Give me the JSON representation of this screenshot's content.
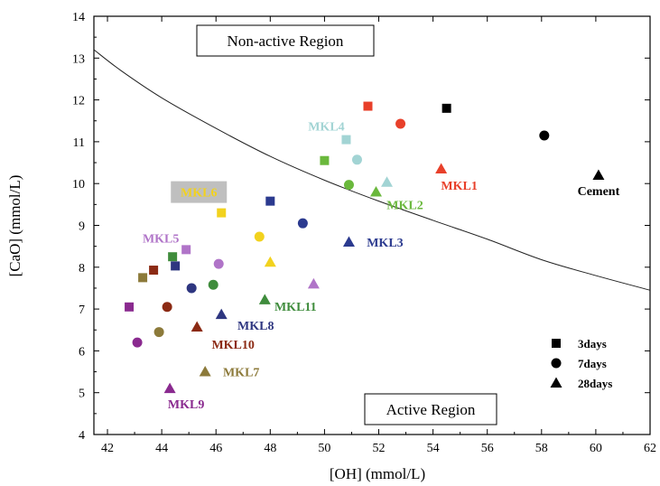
{
  "chart_data": {
    "type": "scatter",
    "xlabel": "[OH] (mmol/L)",
    "ylabel": "[CaO] (mmol/L)",
    "xlim": [
      41.5,
      62
    ],
    "ylim": [
      4,
      14
    ],
    "x_ticks": [
      "42",
      "44",
      "46",
      "48",
      "50",
      "52",
      "54",
      "56",
      "58",
      "60",
      "62"
    ],
    "y_ticks": [
      "4",
      "5",
      "6",
      "7",
      "8",
      "9",
      "10",
      "11",
      "12",
      "13",
      "14"
    ],
    "regions": {
      "upper": "Non-active Region",
      "lower": "Active Region"
    },
    "boundary_curve": [
      [
        41.5,
        13.2
      ],
      [
        42.5,
        12.7
      ],
      [
        44,
        12.05
      ],
      [
        46,
        11.32
      ],
      [
        48,
        10.65
      ],
      [
        50,
        10.08
      ],
      [
        52,
        9.58
      ],
      [
        54,
        9.12
      ],
      [
        56,
        8.67
      ],
      [
        58,
        8.18
      ],
      [
        60,
        7.8
      ],
      [
        62,
        7.45
      ]
    ],
    "legend": {
      "position": "bottom-right",
      "entries": [
        {
          "label": "3days",
          "marker": "square"
        },
        {
          "label": "7days",
          "marker": "circle"
        },
        {
          "label": "28days",
          "marker": "triangle"
        }
      ]
    },
    "series": [
      {
        "name": "Cement",
        "color": "#000000",
        "label_anchor": "right-below",
        "points": {
          "3days": [
            54.5,
            11.8
          ],
          "7days": [
            58.1,
            11.15
          ],
          "28days": [
            60.1,
            10.2
          ]
        }
      },
      {
        "name": "MKL1",
        "color": "#e8402a",
        "label_anchor": "below",
        "points": {
          "3days": [
            51.6,
            11.85
          ],
          "7days": [
            52.8,
            11.43
          ],
          "28days": [
            54.3,
            10.35
          ]
        }
      },
      {
        "name": "MKL2",
        "color": "#6ab83c",
        "label_anchor": "below-right",
        "points": {
          "3days": [
            50.0,
            10.55
          ],
          "7days": [
            50.9,
            9.97
          ],
          "28days": [
            51.9,
            9.8
          ]
        }
      },
      {
        "name": "MKL4",
        "color": "#a2d4d4",
        "label_anchor": "above-left",
        "points": {
          "3days": [
            50.8,
            11.05
          ],
          "7days": [
            51.2,
            10.57
          ],
          "28days": [
            52.3,
            10.03
          ]
        }
      },
      {
        "name": "MKL3",
        "color": "#2b3a8f",
        "label_anchor": "right",
        "points": {
          "3days": [
            48.0,
            9.58
          ],
          "7days": [
            49.2,
            9.05
          ],
          "28days": [
            50.9,
            8.6
          ]
        }
      },
      {
        "name": "MKL6",
        "color": "#f2d21e",
        "label_anchor": "boxed-upper-left",
        "points": {
          "3days": [
            46.2,
            9.3
          ],
          "7days": [
            47.6,
            8.73
          ],
          "28days": [
            48.0,
            8.12
          ]
        }
      },
      {
        "name": "MKL5",
        "color": "#b074c8",
        "label_anchor": "above-left",
        "points": {
          "3days": [
            44.9,
            8.42
          ],
          "7days": [
            46.1,
            8.08
          ],
          "28days": [
            49.6,
            7.6
          ]
        }
      },
      {
        "name": "MKL11",
        "color": "#3f8c3c",
        "label_anchor": "right-below",
        "points": {
          "3days": [
            44.4,
            8.25
          ],
          "7days": [
            45.9,
            7.58
          ],
          "28days": [
            47.8,
            7.22
          ]
        }
      },
      {
        "name": "MKL8",
        "color": "#2e3680",
        "label_anchor": "right-below",
        "points": {
          "3days": [
            44.5,
            8.03
          ],
          "7days": [
            45.1,
            7.5
          ],
          "28days": [
            46.2,
            6.87
          ]
        }
      },
      {
        "name": "MKL10",
        "color": "#8b2a14",
        "label_anchor": "below",
        "points": {
          "3days": [
            43.7,
            7.93
          ],
          "7days": [
            44.2,
            7.05
          ],
          "28days": [
            45.3,
            6.57
          ]
        }
      },
      {
        "name": "MKL7",
        "color": "#8c7a3a",
        "label_anchor": "right",
        "points": {
          "3days": [
            43.3,
            7.75
          ],
          "7days": [
            43.9,
            6.45
          ],
          "28days": [
            45.6,
            5.5
          ]
        }
      },
      {
        "name": "MKL9",
        "color": "#8a2a8f",
        "label_anchor": "below",
        "points": {
          "3days": [
            42.8,
            7.05
          ],
          "7days": [
            43.1,
            6.2
          ],
          "28days": [
            44.3,
            5.1
          ]
        }
      }
    ]
  }
}
